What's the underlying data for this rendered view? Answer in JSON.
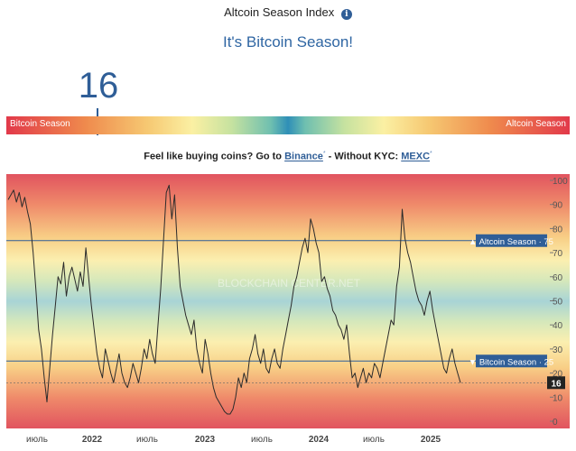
{
  "header": {
    "title": "Altcoin Season Index",
    "headline": "It's Bitcoin Season!",
    "current_value": "16",
    "info_icon": "info-icon"
  },
  "gauge": {
    "left_label": "Bitcoin Season",
    "right_label": "Altcoin Season",
    "value_fraction": 0.16
  },
  "promo": {
    "prefix": "Feel like buying coins? Go to ",
    "link1": "Binance",
    "link1_mark": "*",
    "middle": " - Without KYC: ",
    "link2": "MEXC",
    "link2_mark": "*"
  },
  "watermark": "BLOCKCHAIN CENTER.NET",
  "colors": {
    "accent": "#2f5e97",
    "headline": "#2f66a3",
    "line": "#2b2b2b"
  },
  "chart_data": {
    "type": "line",
    "ylim": [
      0,
      100
    ],
    "y_ticks": [
      0,
      10,
      20,
      30,
      40,
      50,
      60,
      70,
      80,
      90,
      100
    ],
    "x_tick_labels": [
      "июль",
      "2022",
      "июль",
      "2023",
      "июль",
      "2024",
      "июль",
      "2025"
    ],
    "reference_lines": [
      {
        "label": "▲ Altcoin Season · 75",
        "value": 75
      },
      {
        "label": "▼ Bitcoin Season · 25",
        "value": 25
      }
    ],
    "current_label": "16",
    "series": [
      {
        "values": [
          92,
          94,
          96,
          91,
          95,
          89,
          93,
          87,
          82,
          70,
          55,
          38,
          30,
          18,
          8,
          22,
          36,
          48,
          60,
          57,
          66,
          52,
          60,
          64,
          59,
          54,
          62,
          56,
          72,
          60,
          48,
          38,
          28,
          22,
          18,
          30,
          25,
          20,
          16,
          22,
          28,
          20,
          16,
          14,
          18,
          24,
          20,
          16,
          22,
          30,
          26,
          34,
          28,
          24,
          40,
          55,
          75,
          95,
          98,
          84,
          94,
          72,
          56,
          50,
          44,
          40,
          36,
          42,
          30,
          24,
          20,
          34,
          28,
          20,
          14,
          10,
          8,
          6,
          4,
          3,
          3,
          5,
          10,
          18,
          14,
          20,
          16,
          26,
          30,
          36,
          28,
          24,
          30,
          22,
          20,
          26,
          30,
          24,
          22,
          30,
          36,
          42,
          48,
          56,
          60,
          66,
          72,
          76,
          70,
          84,
          80,
          74,
          70,
          58,
          60,
          55,
          52,
          46,
          44,
          40,
          38,
          34,
          40,
          28,
          18,
          20,
          14,
          18,
          22,
          16,
          20,
          18,
          24,
          22,
          18,
          24,
          30,
          36,
          42,
          40,
          56,
          64,
          88,
          76,
          70,
          66,
          60,
          54,
          50,
          48,
          44,
          50,
          54,
          46,
          40,
          34,
          28,
          22,
          20,
          26,
          30,
          24,
          20,
          16
        ]
      }
    ]
  }
}
